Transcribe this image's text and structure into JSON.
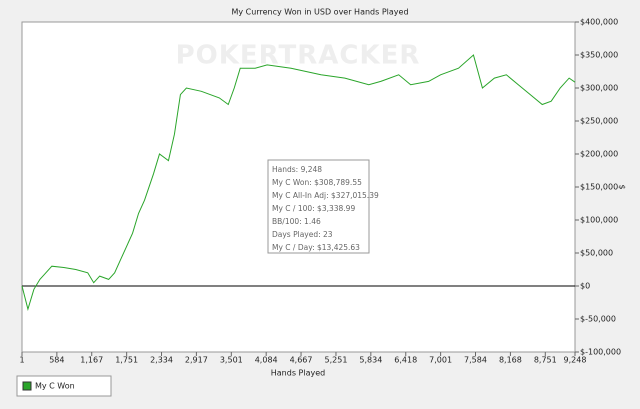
{
  "chart_data": {
    "type": "line",
    "title": "My Currency Won in USD over Hands Played",
    "watermark": "POKERTRACKER",
    "x_label": "Hands Played",
    "y_label": "$",
    "xlim": [
      1,
      9248
    ],
    "xticks": [
      1,
      584,
      {
        "value": 1167,
        "label": "1,167"
      },
      {
        "value": 1751,
        "label": "1,751"
      },
      {
        "value": 2334,
        "label": "2,334"
      },
      {
        "value": 2917,
        "label": "2,917"
      },
      {
        "value": 3501,
        "label": "3,501"
      },
      {
        "value": 4084,
        "label": "4,084"
      },
      {
        "value": 4667,
        "label": "4,667"
      },
      {
        "value": 5251,
        "label": "5,251"
      },
      {
        "value": 5834,
        "label": "5,834"
      },
      {
        "value": 6418,
        "label": "6,418"
      },
      {
        "value": 7001,
        "label": "7,001"
      },
      {
        "value": 7584,
        "label": "7,584"
      },
      {
        "value": 8168,
        "label": "8,168"
      },
      {
        "value": 8751,
        "label": "8,751"
      },
      {
        "value": 9248,
        "label": "9,248"
      }
    ],
    "ylim": [
      -100000,
      400000
    ],
    "yticks": [
      {
        "value": 400000,
        "label": "$400,000"
      },
      {
        "value": 350000,
        "label": "$350,000"
      },
      {
        "value": 300000,
        "label": "$300,000"
      },
      {
        "value": 250000,
        "label": "$250,000"
      },
      {
        "value": 200000,
        "label": "$200,000"
      },
      {
        "value": 150000,
        "label": "$150,000"
      },
      {
        "value": 100000,
        "label": "$100,000"
      },
      {
        "value": 50000,
        "label": "$50,000"
      },
      {
        "value": 0,
        "label": "$0"
      },
      {
        "value": -50000,
        "label": "$-50,000"
      },
      {
        "value": -100000,
        "label": "$-100,000"
      }
    ],
    "x": [
      1,
      100,
      200,
      300,
      400,
      500,
      700,
      900,
      1100,
      1200,
      1300,
      1450,
      1550,
      1650,
      1750,
      1850,
      1950,
      2050,
      2200,
      2300,
      2450,
      2550,
      2650,
      2750,
      3000,
      3300,
      3450,
      3550,
      3650,
      3900,
      4100,
      4500,
      5000,
      5400,
      5800,
      6000,
      6300,
      6500,
      6800,
      7000,
      7300,
      7550,
      7700,
      7900,
      8100,
      8300,
      8500,
      8700,
      8850,
      9000,
      9150,
      9248
    ],
    "series": [
      {
        "name": "My C Won",
        "color": "#2aa52a",
        "values": [
          0,
          -35000,
          -5000,
          10000,
          20000,
          30000,
          28000,
          25000,
          20000,
          5000,
          15000,
          10000,
          20000,
          40000,
          60000,
          80000,
          110000,
          130000,
          170000,
          200000,
          190000,
          230000,
          290000,
          300000,
          295000,
          285000,
          275000,
          300000,
          330000,
          330000,
          335000,
          330000,
          320000,
          315000,
          305000,
          310000,
          320000,
          305000,
          310000,
          320000,
          330000,
          350000,
          300000,
          315000,
          320000,
          305000,
          290000,
          275000,
          280000,
          300000,
          315000,
          308790
        ]
      }
    ],
    "tooltip": [
      "Hands: 9,248",
      "My C Won: $308,789.55",
      "My C All-In Adj: $327,015.39",
      "My C / 100: $3,338.99",
      "BB/100: 1.46",
      "Days Played: 23",
      "My C / Day: $13,425.63"
    ]
  }
}
